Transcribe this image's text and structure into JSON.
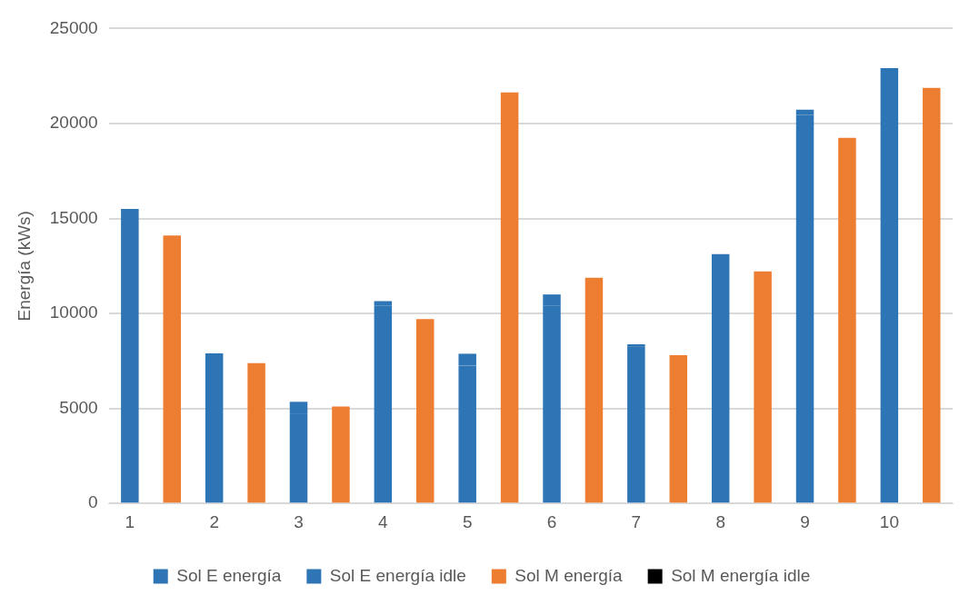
{
  "chart_data": {
    "type": "bar",
    "stacked": true,
    "ylabel": "Energía (kWs)",
    "categories": [
      "1",
      null,
      "2",
      null,
      "3",
      null,
      "4",
      null,
      "5",
      null,
      "6",
      null,
      "7",
      null,
      "8",
      null,
      "9",
      null,
      "10",
      null
    ],
    "series": [
      {
        "name": "Sol E energía",
        "color": "#2e75b6",
        "values": [
          15500,
          null,
          7900,
          null,
          4700,
          null,
          10400,
          null,
          7260,
          null,
          10420,
          null,
          8240,
          null,
          13130,
          null,
          20450,
          null,
          22060,
          null
        ]
      },
      {
        "name": "Sol E energía idle",
        "color": "#2e75b6",
        "values": [
          0,
          null,
          0,
          null,
          650,
          null,
          250,
          null,
          620,
          null,
          580,
          null,
          140,
          null,
          0,
          null,
          280,
          null,
          850,
          null
        ]
      },
      {
        "name": "Sol M energía",
        "color": "#ed7d31",
        "values": [
          null,
          14100,
          null,
          7380,
          null,
          5100,
          null,
          9700,
          null,
          21640,
          null,
          11880,
          null,
          7800,
          null,
          12210,
          null,
          19250,
          null,
          21870
        ]
      },
      {
        "name": "Sol M energía idle",
        "color": "#000000",
        "values": [
          null,
          0,
          null,
          0,
          null,
          0,
          null,
          0,
          null,
          0,
          null,
          0,
          null,
          0,
          null,
          0,
          null,
          0,
          null,
          0
        ]
      }
    ],
    "ylim": [
      0,
      25000
    ],
    "yticks": [
      0,
      5000,
      10000,
      15000,
      20000,
      25000
    ],
    "grid": "y",
    "legend": "bottom"
  }
}
